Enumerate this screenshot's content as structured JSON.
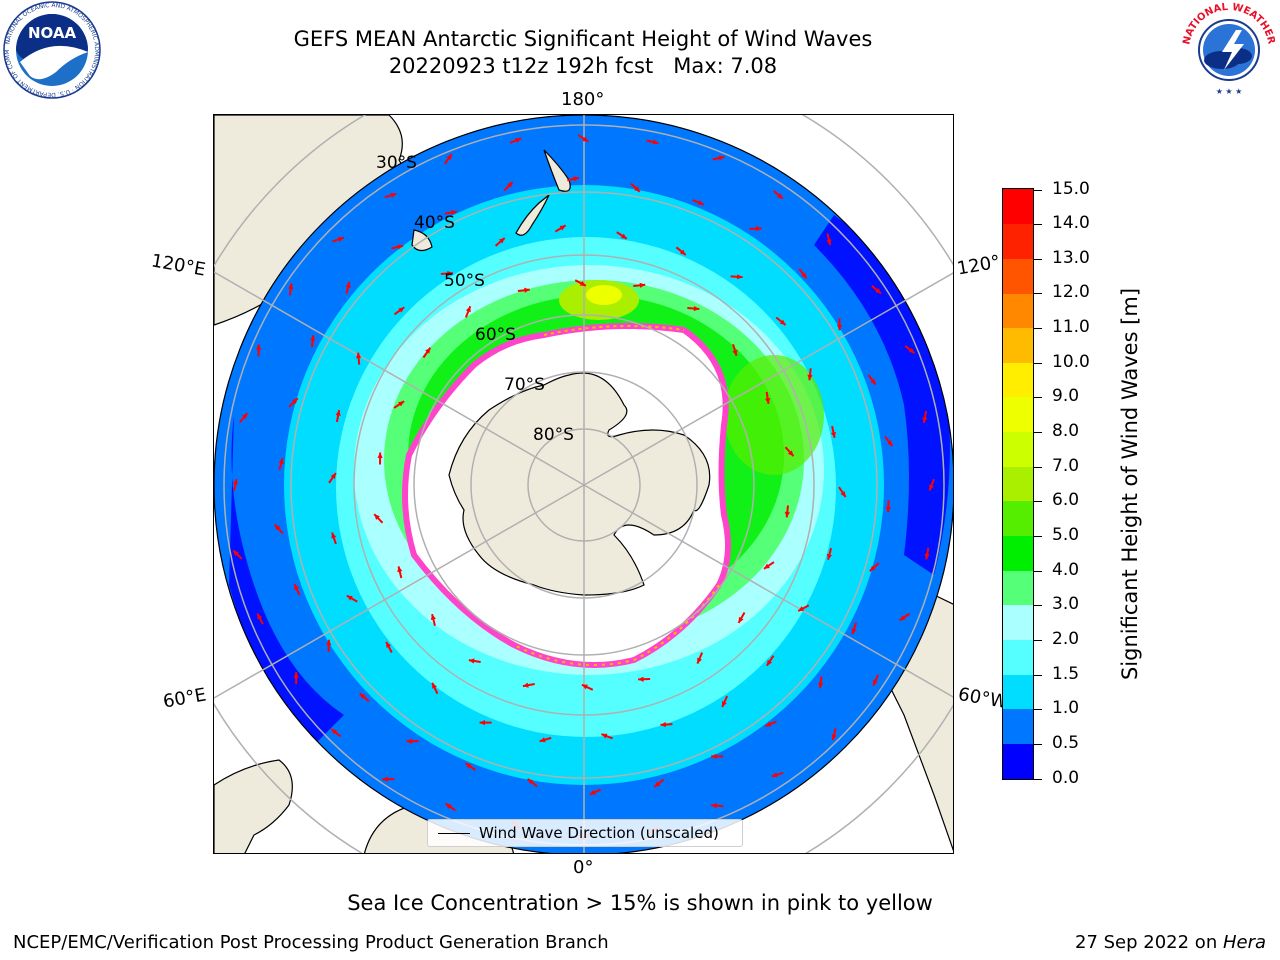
{
  "title": {
    "line1": "GEFS MEAN Antarctic Significant Height of Wind Waves",
    "line2": "20220923 t12z 192h fcst   Max: 7.08"
  },
  "map": {
    "projection": "south-polar-stereographic",
    "lon_labels": [
      "180°",
      "120°E",
      "120°",
      "60°E",
      "60°W",
      "0°"
    ],
    "lat_labels": [
      "30°S",
      "40°S",
      "50°S",
      "60°S",
      "70°S",
      "80°S"
    ],
    "legend_entry": "Wind Wave Direction (unscaled)",
    "arrow_color": "#ff0000",
    "land_color": "#efebdc",
    "sea_ice_color": "#ff44cc"
  },
  "colorbar": {
    "label": "Significant Height of Wind Waves [m]",
    "ticks": [
      "0.0",
      "0.5",
      "1.0",
      "1.5",
      "2.0",
      "3.0",
      "4.0",
      "5.0",
      "6.0",
      "7.0",
      "8.0",
      "9.0",
      "10.0",
      "11.0",
      "12.0",
      "13.0",
      "14.0",
      "15.0"
    ],
    "colors": [
      "#0000ff",
      "#0077ff",
      "#00ddff",
      "#55ffff",
      "#aaffff",
      "#55ff77",
      "#00ee00",
      "#55ee00",
      "#aaee00",
      "#ccff00",
      "#eeff00",
      "#ffee00",
      "#ffbb00",
      "#ff8800",
      "#ff5500",
      "#ff2200",
      "#ff0000"
    ]
  },
  "footnote": "Sea Ice Concentration > 15% is shown in pink to yellow",
  "credits": {
    "left": "NCEP/EMC/Verification Post Processing Product Generation Branch",
    "right_date": "27 Sep 2022 on ",
    "right_host": "Hera"
  },
  "logos": {
    "noaa": "NOAA",
    "noaa_ring": "NATIONAL OCEANIC AND ATMOSPHERIC ADMINISTRATION · U.S. DEPARTMENT OF COMMERCE",
    "nws_ring": "NATIONAL WEATHER SERVICE"
  }
}
